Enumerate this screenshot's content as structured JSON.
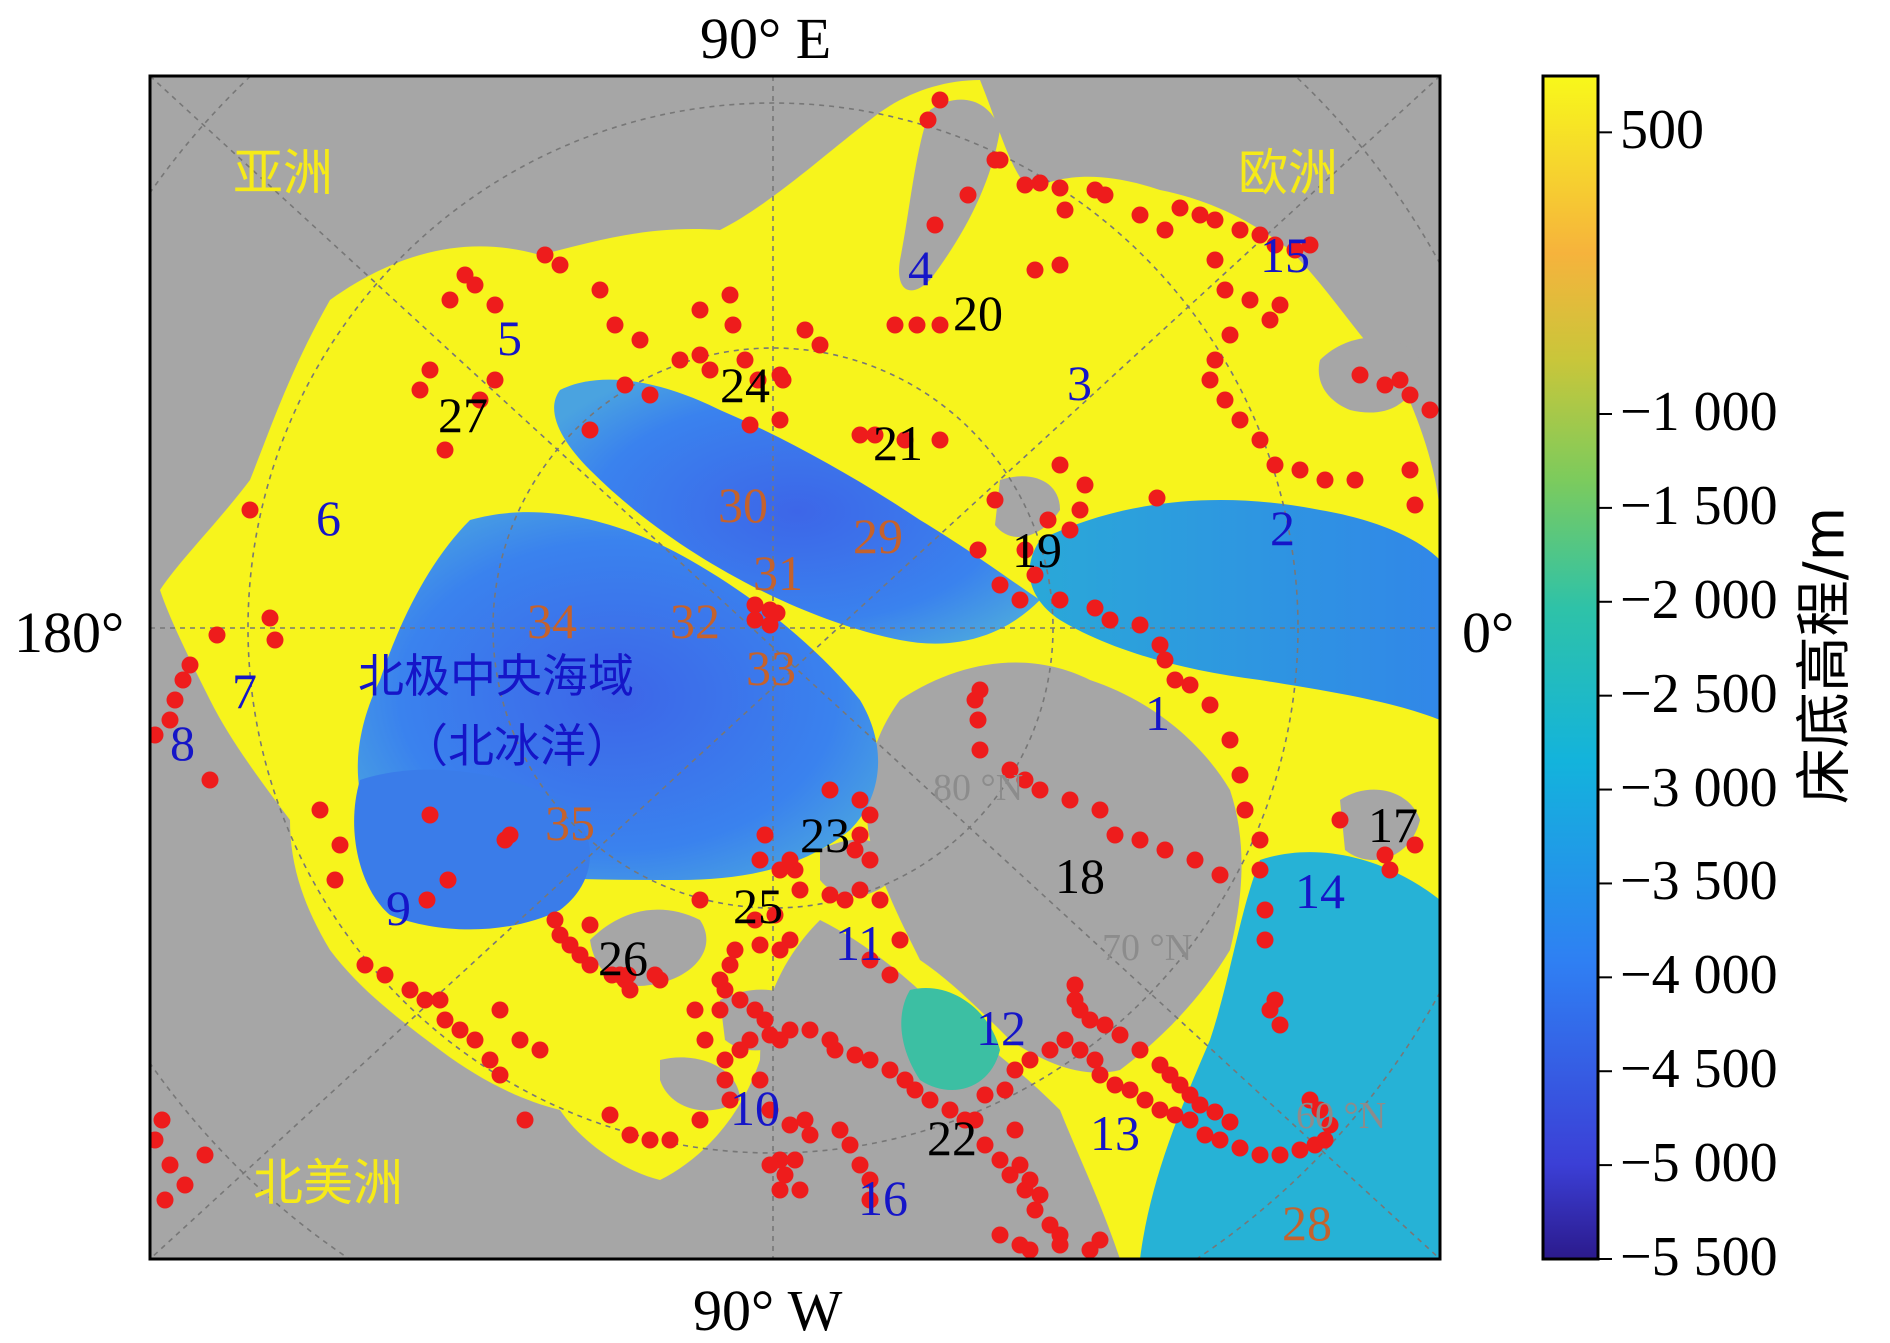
{
  "map": {
    "edge_labels": {
      "top": "90° E",
      "bottom": "90° W",
      "left": "180°",
      "right": "0°"
    },
    "parallel_labels": [
      "80 °N",
      "70 °N",
      "60 °N"
    ],
    "continents": [
      "亚洲",
      "欧洲",
      "北美洲"
    ],
    "ocean_label_line1": "北极中央海域",
    "ocean_label_line2": "（北冰洋）",
    "blue_region_numbers": [
      "1",
      "2",
      "3",
      "4",
      "5",
      "6",
      "7",
      "8",
      "9",
      "10",
      "11",
      "12",
      "13",
      "14",
      "15",
      "16"
    ],
    "black_region_numbers": [
      "17",
      "18",
      "19",
      "20",
      "21",
      "22",
      "23",
      "24",
      "25",
      "26",
      "27"
    ],
    "brown_region_numbers": [
      "28",
      "29",
      "30",
      "31",
      "32",
      "33",
      "34",
      "35"
    ],
    "colors": {
      "land": "#a6a6a6",
      "shelf": "#f7f41c",
      "deep_basin": "#3a78ec",
      "points": "#ee1c1c",
      "blue_label": "#1515c8",
      "brown_label": "#c4622d",
      "continent_label": "#f6ea18"
    }
  },
  "colorbar": {
    "title": "床底高程/m",
    "range": [
      -5500,
      800
    ],
    "ticks": [
      500,
      -1000,
      -1500,
      -2000,
      -2500,
      -3000,
      -3500,
      -4000,
      -4500,
      -5000,
      -5500
    ],
    "tick_labels": [
      "500",
      "−1 000",
      "−1 500",
      "−2 000",
      "−2 500",
      "−3 000",
      "−3 500",
      "−4 000",
      "−4 500",
      "−5 000",
      "−5 500"
    ],
    "colormap": [
      "#2b1a8c",
      "#3b47e0",
      "#2f88f2",
      "#13b6d8",
      "#34c39f",
      "#84cb5a",
      "#c9c63a",
      "#f8b839",
      "#f6da2b",
      "#f8f81a"
    ]
  }
}
